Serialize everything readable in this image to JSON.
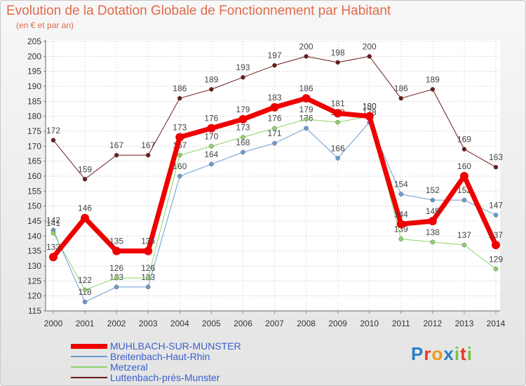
{
  "chart_data": {
    "type": "line",
    "title": "Evolution de la Dotation Globale de Fonctionnement par Habitant",
    "subtitle": "(en € et par an)",
    "xlabel": "",
    "ylabel": "",
    "categories": [
      "2000",
      "2001",
      "2002",
      "2003",
      "2004",
      "2005",
      "2006",
      "2007",
      "2008",
      "2009",
      "2010",
      "2011",
      "2012",
      "2013",
      "2014"
    ],
    "ylim": [
      115,
      205
    ],
    "yticks": [
      115,
      120,
      125,
      130,
      135,
      140,
      145,
      150,
      155,
      160,
      165,
      170,
      175,
      180,
      185,
      190,
      195,
      200,
      205
    ],
    "grid": true,
    "legend_position": "bottom-left",
    "series": [
      {
        "name": "Luttenbach-près-Munster",
        "color": "#6b1a1a",
        "width": 1,
        "values": [
          172,
          159,
          167,
          167,
          186,
          189,
          193,
          197,
          200,
          198,
          200,
          186,
          189,
          169,
          163
        ]
      },
      {
        "name": "Breitenbach-Haut-Rhin",
        "color": "#6a9bd1",
        "width": 1,
        "values": [
          142,
          118,
          123,
          123,
          160,
          164,
          168,
          171,
          176,
          166,
          178,
          154,
          152,
          152,
          147
        ]
      },
      {
        "name": "Metzeral",
        "color": "#8fd46a",
        "width": 1,
        "values": [
          141,
          122,
          126,
          126,
          167,
          170,
          173,
          176,
          179,
          178,
          180,
          139,
          138,
          137,
          129
        ]
      },
      {
        "name": "MUHLBACH-SUR-MUNSTER",
        "color": "#ee0000",
        "width": 7,
        "values": [
          133,
          146,
          135,
          135,
          173,
          176,
          179,
          183,
          186,
          181,
          180,
          144,
          145,
          160,
          137
        ]
      }
    ],
    "legend_order": [
      "MUHLBACH-SUR-MUNSTER",
      "Breitenbach-Haut-Rhin",
      "Metzeral",
      "Luttenbach-près-Munster"
    ]
  },
  "logo": {
    "text": "Proxiti",
    "letters": [
      "P",
      "r",
      "o",
      "x",
      "i",
      "t",
      "i"
    ],
    "colors": [
      "#2a7fc9",
      "#e63a2a",
      "#f29a1a",
      "#2a7fc9",
      "#7ac143",
      "#e63a2a",
      "#7ac143"
    ]
  }
}
